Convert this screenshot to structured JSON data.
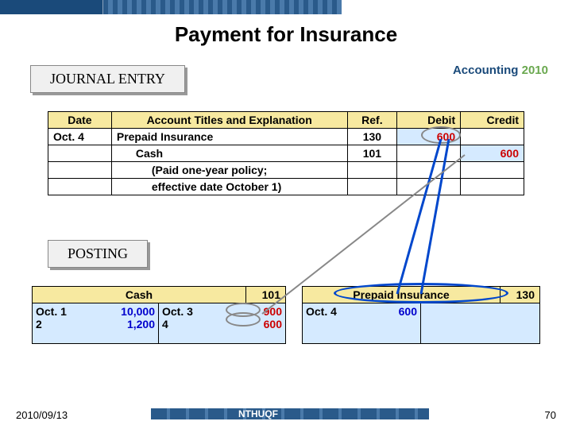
{
  "title": "Payment for Insurance",
  "course": {
    "text1": "Accounting",
    "text2": " 2010"
  },
  "labels": {
    "journal": "JOURNAL ENTRY",
    "posting": "POSTING"
  },
  "journal": {
    "headers": [
      "Date",
      "Account Titles and Explanation",
      "Ref.",
      "Debit",
      "Credit"
    ],
    "rows": [
      {
        "date": "Oct.  4",
        "title": "Prepaid Insurance",
        "ref": "130",
        "debit": "600",
        "credit": ""
      },
      {
        "date": "",
        "title": "Cash",
        "indent": true,
        "ref": "101",
        "debit": "",
        "credit": "600"
      },
      {
        "date": "",
        "title": "(Paid one-year policy;",
        "indent2": true,
        "ref": "",
        "debit": "",
        "credit": ""
      },
      {
        "date": "",
        "title": "effective date October 1)",
        "indent2": true,
        "ref": "",
        "debit": "",
        "credit": ""
      }
    ]
  },
  "tacc": {
    "cash": {
      "name": "Cash",
      "num": "101",
      "left": [
        {
          "d": "Oct.  1",
          "v": "10,000",
          "cls": "v-blue"
        },
        {
          "d": "2",
          "v": "1,200",
          "cls": "v-blue"
        }
      ],
      "right": [
        {
          "d": "Oct.  3",
          "v": "900",
          "cls": "v-red"
        },
        {
          "d": "4",
          "v": "600",
          "cls": "v-red"
        }
      ]
    },
    "prepaid": {
      "name": "Prepaid Insurance",
      "num": "130",
      "left": [
        {
          "d": "Oct.  4",
          "v": "600",
          "cls": "v-blue"
        }
      ],
      "right": []
    }
  },
  "footer": {
    "date": "2010/09/13",
    "org": "NTHUQF",
    "page": "70"
  },
  "colors": {
    "header_bg": "#f7e9a0",
    "cell_highlight": "#d5eaff",
    "debit_credit": "#c00",
    "arrow": "#0047cc"
  }
}
